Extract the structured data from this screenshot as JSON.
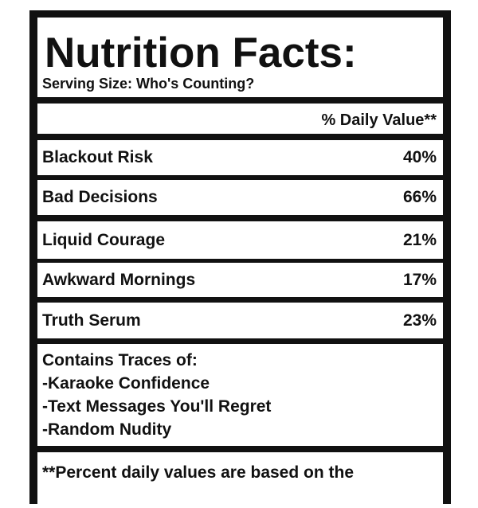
{
  "header": {
    "title": "Nutrition Facts:",
    "serving_size": "Serving Size: Who's Counting?"
  },
  "daily_value_header": "% Daily Value**",
  "rows": [
    {
      "name": "Blackout Risk",
      "value": "40%"
    },
    {
      "name": "Bad Decisions",
      "value": "66%"
    },
    {
      "name": "Liquid Courage",
      "value": "21%"
    },
    {
      "name": "Awkward Mornings",
      "value": "17%"
    },
    {
      "name": "Truth Serum",
      "value": "23%"
    }
  ],
  "contains": {
    "title": "Contains Traces of:",
    "items": [
      "-Karaoke Confidence",
      "-Text Messages You'll Regret",
      "-Random Nudity"
    ]
  },
  "footer": "**Percent daily values are based on the"
}
